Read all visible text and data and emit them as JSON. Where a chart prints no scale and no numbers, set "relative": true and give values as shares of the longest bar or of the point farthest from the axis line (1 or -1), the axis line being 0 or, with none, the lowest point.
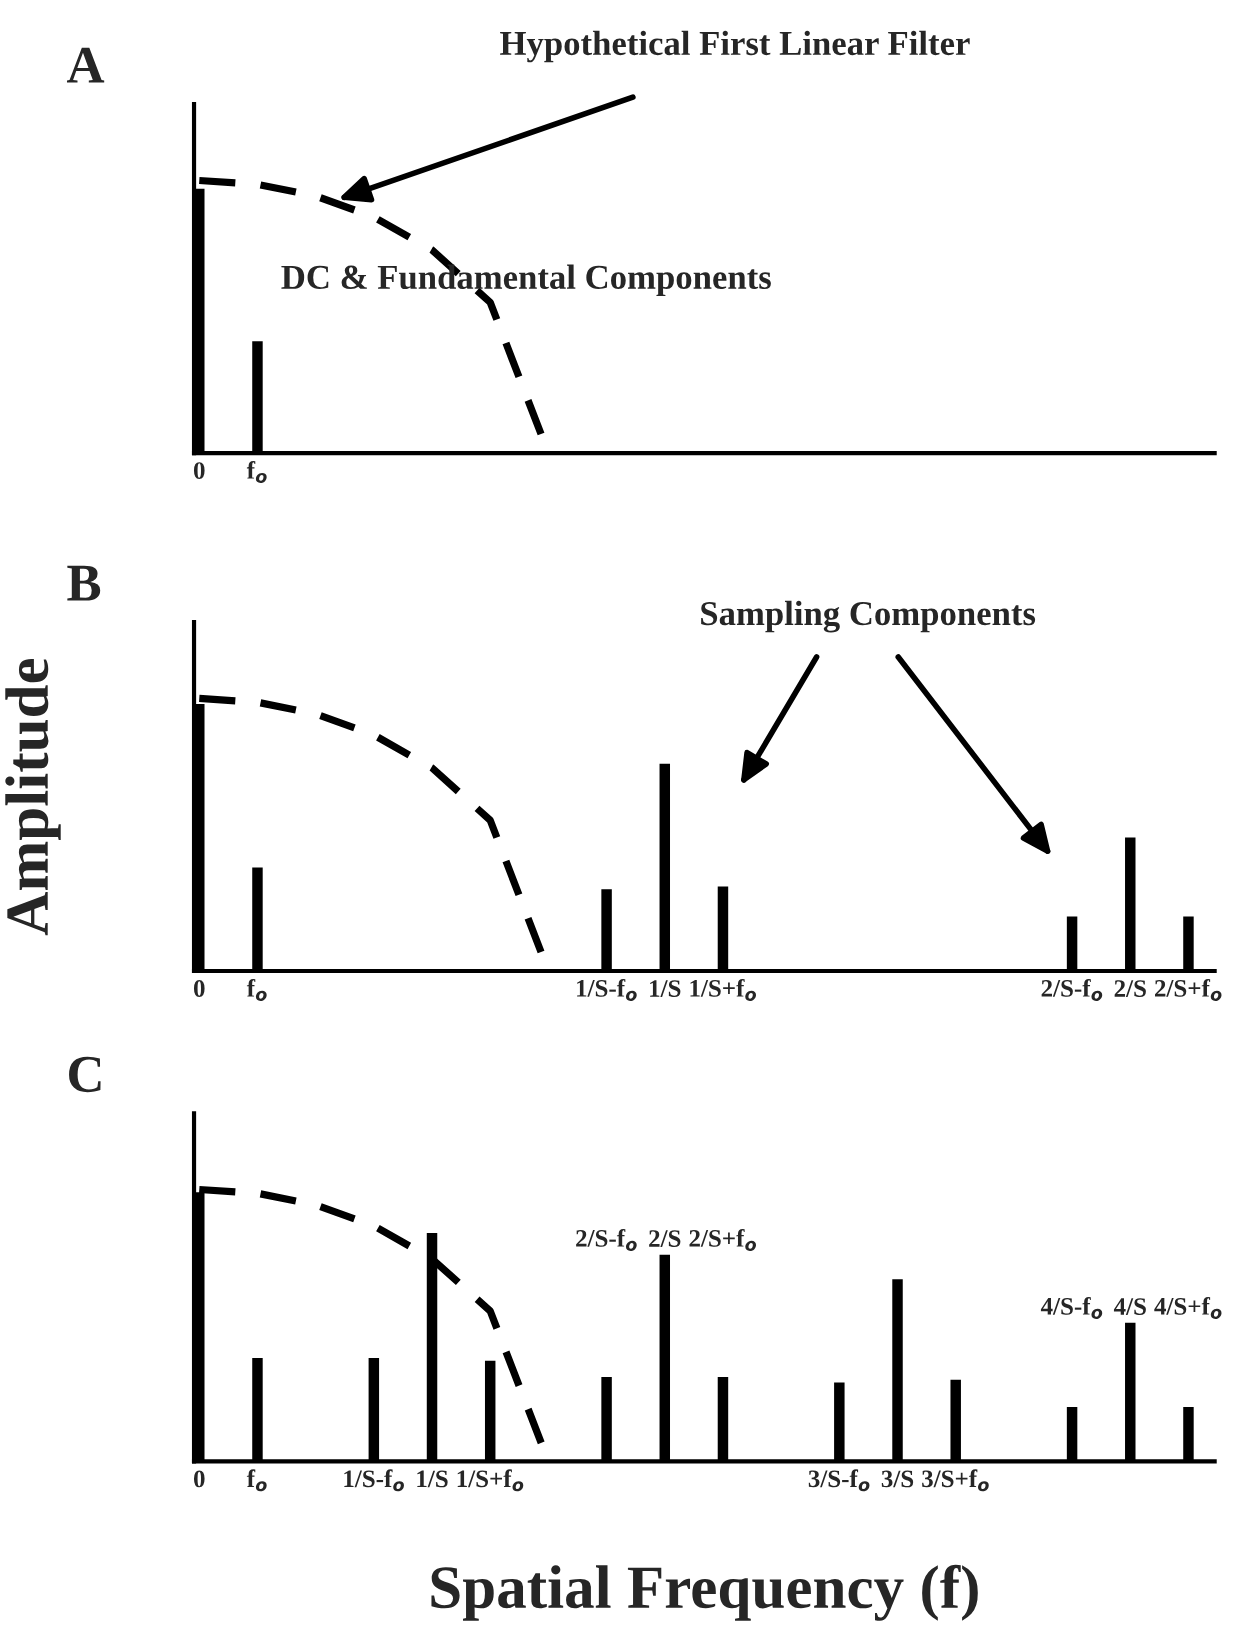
{
  "chart_data": [
    {
      "type": "bar",
      "title": "A",
      "relative": true,
      "categories": [
        "0",
        "f$_{o}$",
        null,
        null,
        null,
        null,
        null,
        null,
        null,
        null,
        null,
        null,
        null,
        null,
        null,
        null,
        null,
        null
      ],
      "series": [
        {
          "color": "#000000",
          "values": [
            0.97,
            0.41,
            null,
            null,
            null,
            null,
            null,
            null,
            null,
            null,
            null,
            null,
            null,
            null,
            null,
            null,
            null,
            null
          ]
        },
        {
          "type": "line",
          "color": "#000000",
          "line_style": "dashed",
          "values": [
            1,
            0.986,
            0.943,
            0.866,
            0.745,
            0.553,
            0,
            null,
            null,
            null,
            null,
            null,
            null,
            null,
            null,
            null,
            null,
            null
          ]
        }
      ],
      "annotations": [
        "Hypothetical First Linear Filter",
        "DC & Fundamental Components"
      ]
    },
    {
      "type": "bar",
      "title": "B",
      "relative": true,
      "ylabel": "Amplitude",
      "categories": [
        "0",
        "f$_{o}$",
        null,
        null,
        null,
        null,
        null,
        "1/S-f$_{o}$",
        "1/S",
        "1/S+f$_{o}$",
        null,
        null,
        null,
        null,
        null,
        "2/S-f$_{o}$",
        "2/S",
        "2/S+f$_{o}$"
      ],
      "series": [
        {
          "color": "#000000",
          "values": [
            0.98,
            0.38,
            null,
            null,
            null,
            null,
            null,
            0.3,
            0.76,
            0.31,
            null,
            null,
            null,
            null,
            null,
            0.2,
            0.49,
            0.2
          ]
        },
        {
          "type": "line",
          "color": "#000000",
          "line_style": "dashed",
          "values": [
            1,
            0.986,
            0.943,
            0.866,
            0.745,
            0.553,
            0,
            null,
            null,
            null,
            null,
            null,
            null,
            null,
            null,
            null,
            null,
            null
          ]
        }
      ],
      "annotations": [
        "Sampling Components"
      ]
    },
    {
      "type": "bar",
      "title": "C",
      "relative": true,
      "xlabel": "Spatial Frequency (f)",
      "categories": [
        "0",
        "f$_{o}$",
        null,
        "1/S-f$_{o}$",
        "1/S",
        "1/S+f$_{o}$",
        null,
        null,
        null,
        null,
        null,
        "3/S-f$_{o}$",
        "3/S",
        "3/S+f$_{o}$",
        null,
        null,
        null,
        null
      ],
      "series": [
        {
          "color": "#000000",
          "values": [
            0.99,
            0.38,
            null,
            0.38,
            0.84,
            0.37,
            null,
            0.31,
            0.76,
            0.31,
            null,
            0.29,
            0.67,
            0.3,
            null,
            0.2,
            0.51,
            0.2
          ]
        },
        {
          "type": "line",
          "color": "#000000",
          "line_style": "dashed",
          "values": [
            1,
            0.986,
            0.943,
            0.866,
            0.745,
            0.553,
            0,
            null,
            null,
            null,
            null,
            null,
            null,
            null,
            null,
            null,
            null,
            null
          ]
        }
      ],
      "annotations": [
        "2/S-f$_{o}$",
        "2/S",
        "2/S+f$_{o}$",
        "4/S-f$_{o}$",
        "4/S",
        "4/S+f$_{o}$"
      ]
    }
  ]
}
